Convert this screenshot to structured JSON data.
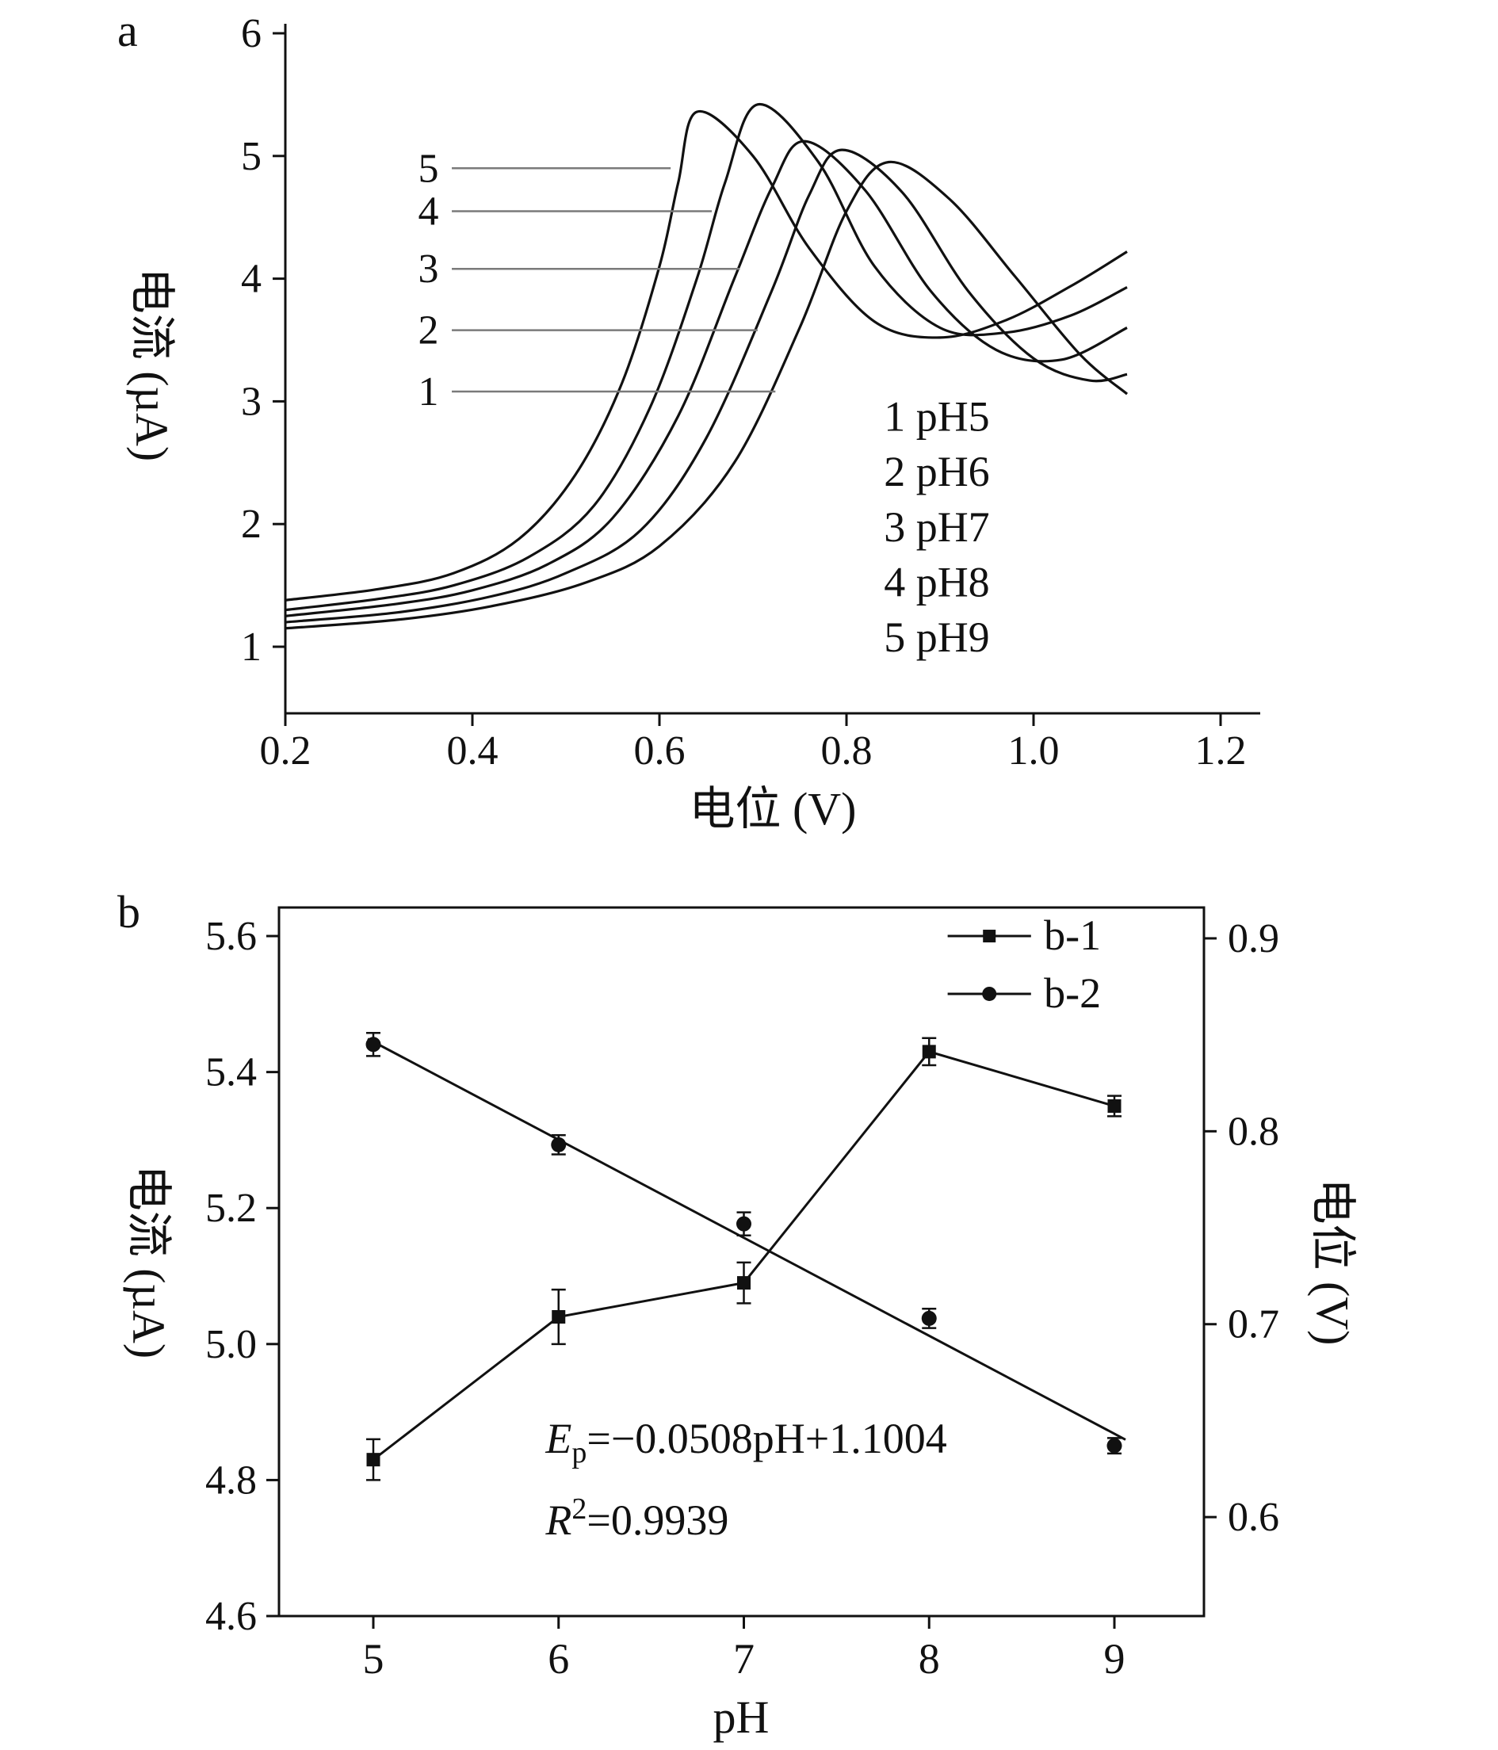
{
  "panel_labels": {
    "a": "a",
    "b": "b"
  },
  "colors": {
    "ink": "#111111",
    "pointer_line": "#7a7a7a",
    "background": "#ffffff"
  },
  "chart_data": [
    {
      "id": "panel-a",
      "type": "line",
      "title": "",
      "xlabel": "电位 (V)",
      "ylabel": "电流 (µA)",
      "xlim": [
        0.2,
        1.25
      ],
      "ylim": [
        0.45,
        6.08
      ],
      "x_ticks": [
        0.2,
        0.4,
        0.6,
        0.8,
        1.0,
        1.2
      ],
      "y_ticks": [
        1,
        2,
        3,
        4,
        5,
        6
      ],
      "x_tick_decimals": 1,
      "y_tick_decimals": 0,
      "grid": false,
      "series": [
        {
          "name": "1 pH5",
          "pH": 5,
          "peak_potential_V": 0.845,
          "peak_current_uA": 4.95,
          "points": [
            [
              0.2,
              1.15
            ],
            [
              0.32,
              1.22
            ],
            [
              0.42,
              1.33
            ],
            [
              0.52,
              1.52
            ],
            [
              0.6,
              1.82
            ],
            [
              0.68,
              2.5
            ],
            [
              0.75,
              3.6
            ],
            [
              0.8,
              4.55
            ],
            [
              0.845,
              4.95
            ],
            [
              0.91,
              4.65
            ],
            [
              0.98,
              4.02
            ],
            [
              1.05,
              3.38
            ],
            [
              1.1,
              3.06
            ]
          ]
        },
        {
          "name": "2 pH6",
          "pH": 6,
          "peak_potential_V": 0.795,
          "peak_current_uA": 5.05,
          "points": [
            [
              0.2,
              1.2
            ],
            [
              0.32,
              1.28
            ],
            [
              0.42,
              1.41
            ],
            [
              0.5,
              1.6
            ],
            [
              0.58,
              1.95
            ],
            [
              0.65,
              2.7
            ],
            [
              0.72,
              3.9
            ],
            [
              0.76,
              4.68
            ],
            [
              0.795,
              5.05
            ],
            [
              0.86,
              4.7
            ],
            [
              0.93,
              3.9
            ],
            [
              1.0,
              3.35
            ],
            [
              1.06,
              3.17
            ],
            [
              1.1,
              3.22
            ]
          ]
        },
        {
          "name": "3 pH7",
          "pH": 7,
          "peak_potential_V": 0.755,
          "peak_current_uA": 5.12,
          "points": [
            [
              0.2,
              1.25
            ],
            [
              0.32,
              1.35
            ],
            [
              0.4,
              1.46
            ],
            [
              0.48,
              1.67
            ],
            [
              0.55,
              2.05
            ],
            [
              0.62,
              2.88
            ],
            [
              0.68,
              4.0
            ],
            [
              0.72,
              4.74
            ],
            [
              0.755,
              5.12
            ],
            [
              0.82,
              4.72
            ],
            [
              0.89,
              3.9
            ],
            [
              0.96,
              3.42
            ],
            [
              1.03,
              3.34
            ],
            [
              1.1,
              3.6
            ]
          ]
        },
        {
          "name": "4 pH8",
          "pH": 8,
          "peak_potential_V": 0.705,
          "peak_current_uA": 5.42,
          "points": [
            [
              0.2,
              1.3
            ],
            [
              0.3,
              1.39
            ],
            [
              0.38,
              1.5
            ],
            [
              0.46,
              1.73
            ],
            [
              0.53,
              2.15
            ],
            [
              0.59,
              2.95
            ],
            [
              0.64,
              4.0
            ],
            [
              0.67,
              4.78
            ],
            [
              0.705,
              5.42
            ],
            [
              0.77,
              4.95
            ],
            [
              0.83,
              4.1
            ],
            [
              0.9,
              3.6
            ],
            [
              0.97,
              3.56
            ],
            [
              1.04,
              3.7
            ],
            [
              1.1,
              3.93
            ]
          ]
        },
        {
          "name": "5 pH9",
          "pH": 9,
          "peak_potential_V": 0.64,
          "peak_current_uA": 5.36,
          "points": [
            [
              0.2,
              1.38
            ],
            [
              0.3,
              1.47
            ],
            [
              0.38,
              1.6
            ],
            [
              0.45,
              1.88
            ],
            [
              0.51,
              2.4
            ],
            [
              0.56,
              3.15
            ],
            [
              0.6,
              4.1
            ],
            [
              0.62,
              4.78
            ],
            [
              0.64,
              5.36
            ],
            [
              0.7,
              5.0
            ],
            [
              0.76,
              4.25
            ],
            [
              0.83,
              3.65
            ],
            [
              0.9,
              3.52
            ],
            [
              0.97,
              3.66
            ],
            [
              1.04,
              3.94
            ],
            [
              1.1,
              4.22
            ]
          ]
        }
      ],
      "curve_pointers": [
        {
          "label": "5",
          "y": 4.9,
          "x_text": 0.353,
          "x_line_start": 0.378,
          "x_line_end": 0.612
        },
        {
          "label": "4",
          "y": 4.55,
          "x_text": 0.353,
          "x_line_start": 0.378,
          "x_line_end": 0.656
        },
        {
          "label": "3",
          "y": 4.08,
          "x_text": 0.353,
          "x_line_start": 0.378,
          "x_line_end": 0.686
        },
        {
          "label": "2",
          "y": 3.58,
          "x_text": 0.353,
          "x_line_start": 0.378,
          "x_line_end": 0.705
        },
        {
          "label": "1",
          "y": 3.08,
          "x_text": 0.353,
          "x_line_start": 0.378,
          "x_line_end": 0.724
        }
      ],
      "inner_legend": {
        "x": 0.84,
        "lines": [
          "1 pH5",
          "2 pH6",
          "3 pH7",
          "4 pH8",
          "5 pH9"
        ],
        "y_positions": [
          2.87,
          2.42,
          1.97,
          1.52,
          1.07
        ]
      }
    },
    {
      "id": "panel-b",
      "type": "scatter",
      "title": "",
      "xlabel": "pH",
      "ylabel_left": "电流 (µA)",
      "ylabel_right": "电位 (V)",
      "xlim": [
        4.5,
        9.5
      ],
      "x_ticks": [
        5,
        6,
        7,
        8,
        9
      ],
      "x_tick_decimals": 0,
      "ylim_left": [
        4.6,
        5.642
      ],
      "y_ticks_left": [
        5.6,
        5.4,
        5.2,
        5.0,
        4.8,
        4.6
      ],
      "ylim_right": [
        0.5487,
        0.916
      ],
      "y_ticks_right": [
        0.9,
        0.8,
        0.7,
        0.6
      ],
      "grid": false,
      "series": [
        {
          "name": "b-1",
          "axis": "left",
          "marker": "square",
          "x": [
            5,
            6,
            7,
            8,
            9
          ],
          "y": [
            4.83,
            5.04,
            5.09,
            5.43,
            5.35
          ],
          "yerr": [
            0.03,
            0.04,
            0.03,
            0.02,
            0.015
          ],
          "line": "point-to-point"
        },
        {
          "name": "b-2",
          "axis": "right",
          "marker": "circle",
          "x": [
            5,
            6,
            7,
            8,
            9
          ],
          "y": [
            0.845,
            0.793,
            0.752,
            0.703,
            0.637
          ],
          "yerr": [
            0.006,
            0.005,
            0.006,
            0.005,
            0.004
          ],
          "line": "linear-fit",
          "fit": {
            "slope": -0.0508,
            "intercept": 1.1004,
            "x_start": 4.97,
            "x_end": 9.06
          }
        }
      ],
      "legend": {
        "items": [
          {
            "label": "b-1",
            "marker": "square"
          },
          {
            "label": "b-2",
            "marker": "circle"
          }
        ],
        "x_line_start": 8.1,
        "x_line_end": 8.55,
        "x_text": 8.62,
        "row_y": [
          5.6,
          5.515
        ]
      },
      "annotation": {
        "equation_lead": "E",
        "equation_sub": "p",
        "equation_rest": "=−0.0508pH+1.1004",
        "r2_lead": "R",
        "r2_sup": "2",
        "r2_rest": "=0.9939",
        "x": 5.93,
        "y_equation": 4.84,
        "y_r2": 4.72
      }
    }
  ]
}
